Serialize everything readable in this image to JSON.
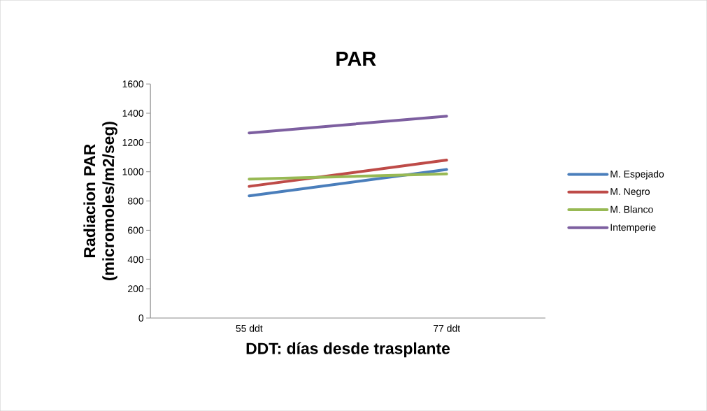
{
  "chart_data": {
    "type": "line",
    "title": "PAR",
    "xlabel": "DDT: días desde trasplante",
    "ylabel": "Radiacion PAR (micromoles/m2/seg)",
    "categories": [
      "55 ddt",
      "77 ddt"
    ],
    "series": [
      {
        "name": "M. Espejado",
        "color": "#4a7ebb",
        "values": [
          835,
          1015
        ]
      },
      {
        "name": "M. Negro",
        "color": "#be4b48",
        "values": [
          900,
          1080
        ]
      },
      {
        "name": "M. Blanco",
        "color": "#98b954",
        "values": [
          950,
          985
        ]
      },
      {
        "name": "Intemperie",
        "color": "#7d5fa0",
        "values": [
          1265,
          1380
        ]
      }
    ],
    "ylim": [
      0,
      1600
    ],
    "yticks": [
      0,
      200,
      400,
      600,
      800,
      1000,
      1200,
      1400,
      1600
    ],
    "grid": false,
    "legend": "right",
    "marker": "none",
    "line_style": "solid"
  }
}
